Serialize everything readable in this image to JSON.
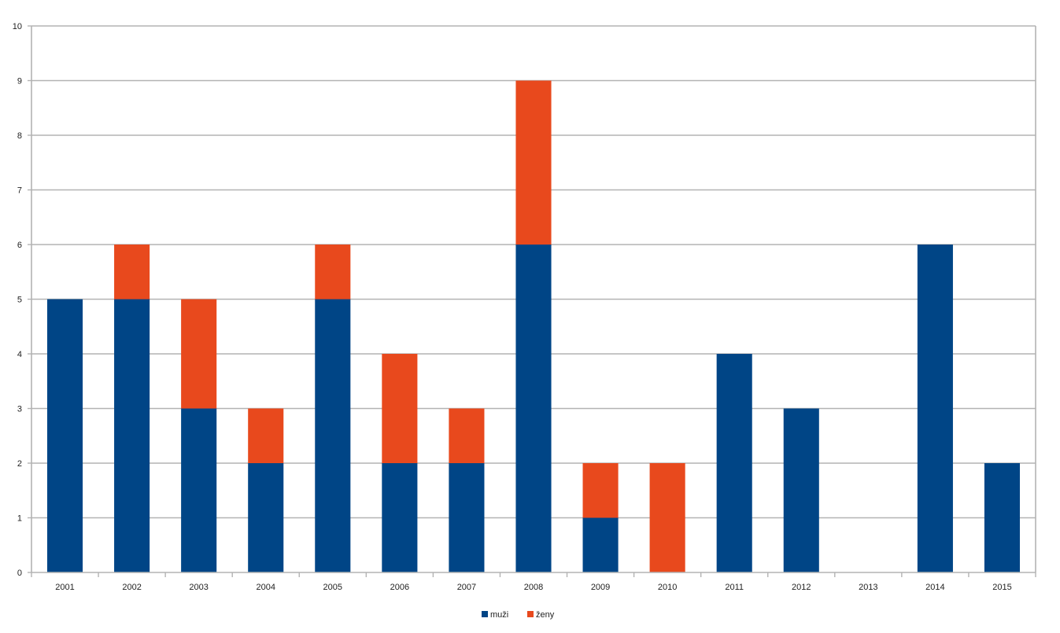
{
  "chart_data": {
    "type": "bar",
    "stacked": true,
    "categories": [
      "2001",
      "2002",
      "2003",
      "2004",
      "2005",
      "2006",
      "2007",
      "2008",
      "2009",
      "2010",
      "2011",
      "2012",
      "2013",
      "2014",
      "2015"
    ],
    "series": [
      {
        "name": "muži",
        "color": "#004586",
        "values": [
          5,
          5,
          3,
          2,
          5,
          2,
          2,
          6,
          1,
          0,
          4,
          3,
          0,
          6,
          2
        ]
      },
      {
        "name": "ženy",
        "color": "#e8491d",
        "values": [
          0,
          1,
          2,
          1,
          1,
          2,
          1,
          3,
          1,
          2,
          0,
          0,
          0,
          0,
          0
        ]
      }
    ],
    "title": "",
    "xlabel": "",
    "ylabel": "",
    "ylim": [
      0,
      10
    ],
    "yticks": [
      0,
      1,
      2,
      3,
      4,
      5,
      6,
      7,
      8,
      9,
      10
    ],
    "grid": true,
    "legend_position": "bottom-center"
  }
}
